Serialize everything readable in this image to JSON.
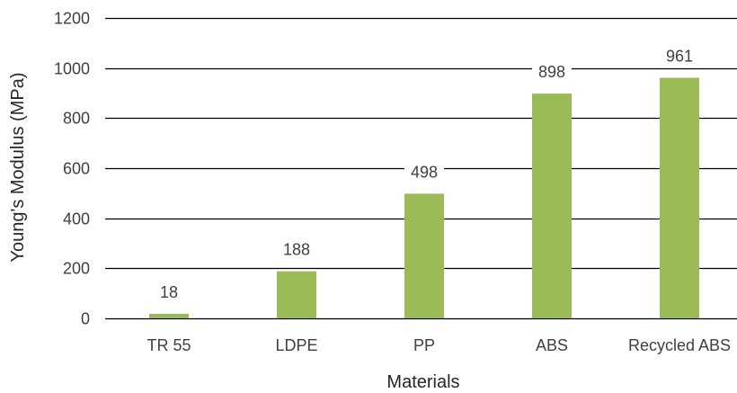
{
  "chart_data": {
    "type": "bar",
    "title": "",
    "xlabel": "Materials",
    "ylabel": "Young's Modulus (MPa)",
    "categories": [
      "TR 55",
      "LDPE",
      "PP",
      "ABS",
      "Recycled ABS"
    ],
    "values": [
      18,
      188,
      498,
      898,
      961
    ],
    "value_labels": [
      "18",
      "188",
      "498",
      "898",
      "961"
    ],
    "ylim": [
      0,
      1200
    ],
    "yticks": [
      0,
      200,
      400,
      600,
      800,
      1000,
      1200
    ],
    "ytick_labels": [
      "0",
      "200",
      "400",
      "600",
      "800",
      "1000",
      "1200"
    ],
    "grid": true,
    "legend": "none",
    "bar_color": "#9bbb59",
    "grid_color": "#000000",
    "text_color": "#404040"
  }
}
